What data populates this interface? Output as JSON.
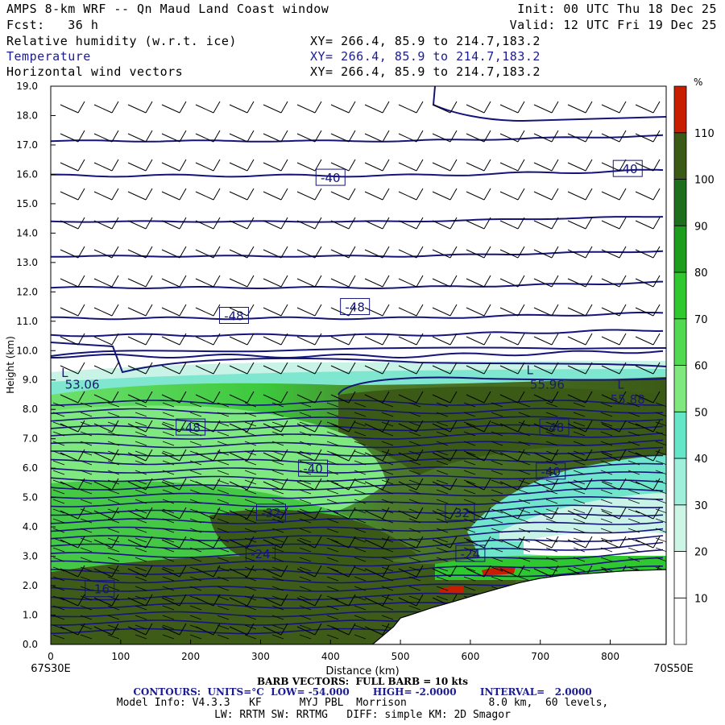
{
  "header": {
    "title": "AMPS 8-km WRF -- Qn Maud Land Coast window",
    "forecast": "Fcst:   36 h",
    "init": "Init: 00 UTC Thu 18 Dec 25",
    "valid": "Valid: 12 UTC Fri 19 Dec 25",
    "fields": [
      {
        "name": "Relative humidity (w.r.t. ice)",
        "xy": "XY= 266.4, 85.9 to 214.7,183.2"
      },
      {
        "name": "Temperature",
        "xy": "XY= 266.4, 85.9 to 214.7,183.2"
      },
      {
        "name": "Horizontal wind vectors",
        "xy": "XY= 266.4, 85.9 to 214.7,183.2"
      }
    ]
  },
  "footer": {
    "barb": "BARB VECTORS:  FULL BARB = 10 kts",
    "contours": "CONTOURS:  UNITS=°C  LOW= -54.000       HIGH= -2.0000       INTERVAL=   2.0000",
    "model": "Model Info: V4.3.3   KF      MYJ PBL  Morrison             8.0 km,  60 levels,",
    "physics": "LW: RRTM SW: RRTMG   DIFF: simple KM: 2D Smagor"
  },
  "colors": {
    "contour": "#14147a",
    "barb": "#000000",
    "terrain": "#ffffff",
    "scale": [
      "#ffffff",
      "#ffffff",
      "#cdf5e6",
      "#a0eedc",
      "#66e6c8",
      "#7fe87f",
      "#52d952",
      "#2fc82f",
      "#1c9e1c",
      "#1d6e1d",
      "#3b5a16",
      "#c81e00"
    ]
  },
  "chart_data": {
    "type": "cross-section",
    "title": "AMPS 8-km WRF -- Qn Maud Land Coast window",
    "xlabel": "Distance (km)",
    "ylabel": "Height (km)",
    "xlim": [
      0,
      880
    ],
    "ylim": [
      0,
      19
    ],
    "x_ticks": [
      0,
      100,
      200,
      300,
      400,
      500,
      600,
      700,
      800
    ],
    "y_ticks": [
      "0.0",
      "1.0",
      "2.0",
      "3.0",
      "4.0",
      "5.0",
      "6.0",
      "7.0",
      "8.0",
      "9.0",
      "10.0",
      "11.0",
      "12.0",
      "13.0",
      "14.0",
      "15.0",
      "16.0",
      "17.0",
      "18.0",
      "19.0"
    ],
    "left_point": "67S30E",
    "right_point": "70S50E",
    "colorbar": {
      "unit": "%",
      "levels": [
        10,
        20,
        30,
        40,
        50,
        60,
        70,
        80,
        90,
        100,
        110
      ],
      "colors": [
        "#ffffff",
        "#ffffff",
        "#cdf5e6",
        "#a0eedc",
        "#66e6c8",
        "#7fe87f",
        "#52d952",
        "#2fc82f",
        "#1c9e1c",
        "#1d6e1d",
        "#3b5a16",
        "#c81e00"
      ]
    },
    "terrain": {
      "x_km": [
        0,
        460,
        475,
        490,
        500,
        520,
        545,
        575,
        610,
        640,
        670,
        700,
        730,
        760,
        790,
        820,
        880
      ],
      "z_km": [
        0,
        0,
        0.3,
        0.6,
        0.9,
        1.05,
        1.25,
        1.45,
        1.7,
        1.9,
        2.1,
        2.25,
        2.35,
        2.4,
        2.45,
        2.5,
        2.55
      ]
    },
    "temperature_labels": [
      {
        "text": "-40",
        "x_km": 400,
        "z_km": 15.9
      },
      {
        "text": "-40",
        "x_km": 825,
        "z_km": 16.2
      },
      {
        "text": "-48",
        "x_km": 262,
        "z_km": 11.2
      },
      {
        "text": "-48",
        "x_km": 435,
        "z_km": 11.5
      },
      {
        "text": "-48",
        "x_km": 200,
        "z_km": 7.4
      },
      {
        "text": "-48",
        "x_km": 720,
        "z_km": 7.4
      },
      {
        "text": "-40",
        "x_km": 375,
        "z_km": 6.0
      },
      {
        "text": "-40",
        "x_km": 715,
        "z_km": 5.9
      },
      {
        "text": "-32",
        "x_km": 315,
        "z_km": 4.5
      },
      {
        "text": "-32",
        "x_km": 585,
        "z_km": 4.5
      },
      {
        "text": "-24",
        "x_km": 300,
        "z_km": 3.1
      },
      {
        "text": "-24",
        "x_km": 600,
        "z_km": 3.1
      },
      {
        "text": "-16",
        "x_km": 70,
        "z_km": 1.9
      }
    ],
    "extrema_labels": [
      {
        "text": "53.06",
        "x_km": 45,
        "z_km": 8.7
      },
      {
        "text": "55.96",
        "x_km": 710,
        "z_km": 8.7
      },
      {
        "text": "55.88",
        "x_km": 825,
        "z_km": 8.2
      }
    ],
    "extrema_marks": [
      {
        "text": "L",
        "x_km": 20,
        "z_km": 9.1
      },
      {
        "text": "L",
        "x_km": 685,
        "z_km": 9.2
      },
      {
        "text": "L",
        "x_km": 815,
        "z_km": 8.7
      }
    ]
  }
}
